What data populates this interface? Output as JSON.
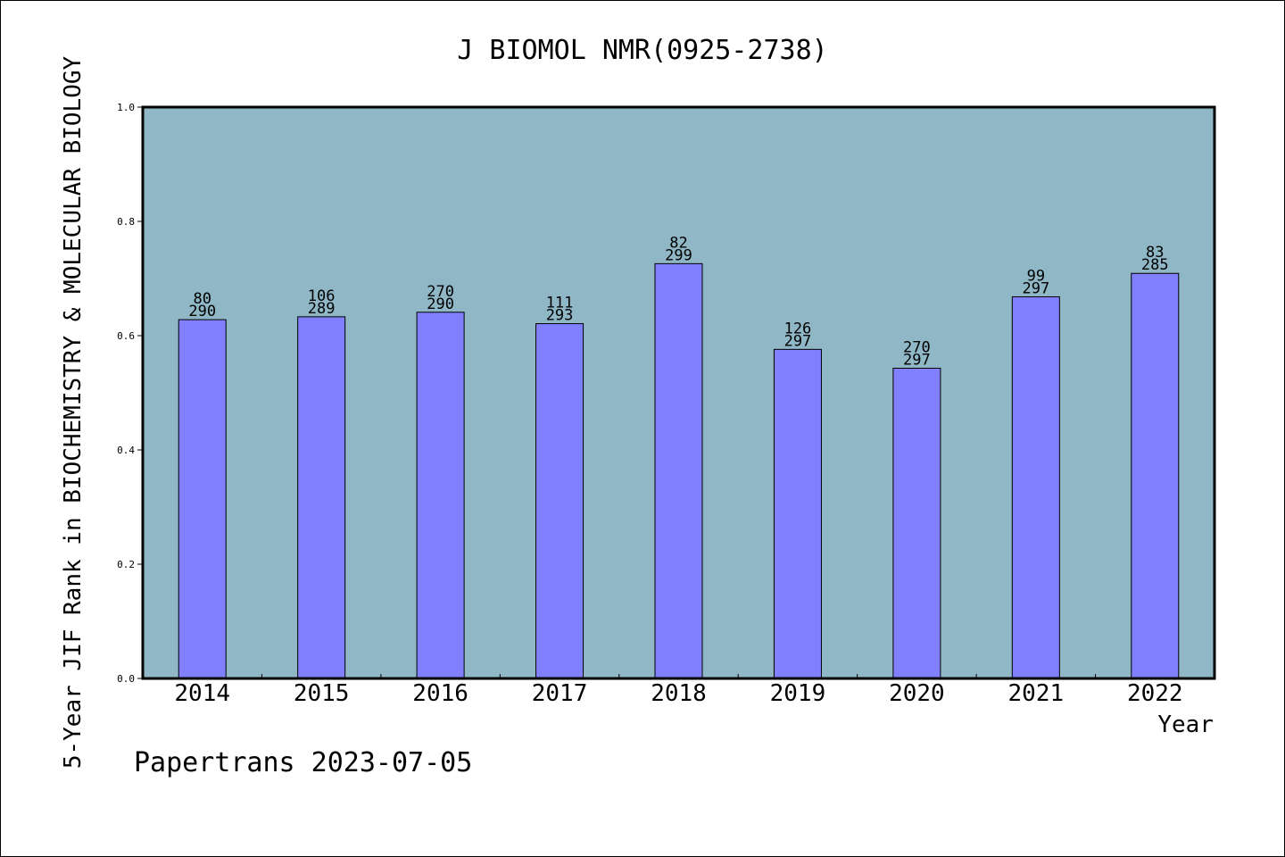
{
  "chart_data": {
    "type": "bar",
    "title": "J BIOMOL NMR(0925-2738)",
    "xlabel": "Year",
    "ylabel": "5-Year JIF Rank in BIOCHEMISTRY & MOLECULAR BIOLOGY",
    "ylim": [
      0,
      1.0
    ],
    "yticks": [
      "0.0",
      "0.2",
      "0.4",
      "0.6",
      "0.8",
      "1.0"
    ],
    "categories": [
      "2014",
      "2015",
      "2016",
      "2017",
      "2018",
      "2019",
      "2020",
      "2021",
      "2022"
    ],
    "values": [
      0.628,
      0.633,
      0.641,
      0.621,
      0.726,
      0.576,
      0.543,
      0.668,
      0.709
    ],
    "bar_labels": [
      [
        "80",
        "290"
      ],
      [
        "106",
        "289"
      ],
      [
        "270",
        "290"
      ],
      [
        "111",
        "293"
      ],
      [
        "82",
        "299"
      ],
      [
        "126",
        "297"
      ],
      [
        "270",
        "297"
      ],
      [
        "99",
        "297"
      ],
      [
        "83",
        "285"
      ]
    ],
    "grid": false,
    "colors": {
      "plot_bg": "#8fb7c6",
      "bar": "#8080ff",
      "axis": "#000000"
    }
  },
  "footer": {
    "watermark": "Papertrans 2023-07-05"
  }
}
